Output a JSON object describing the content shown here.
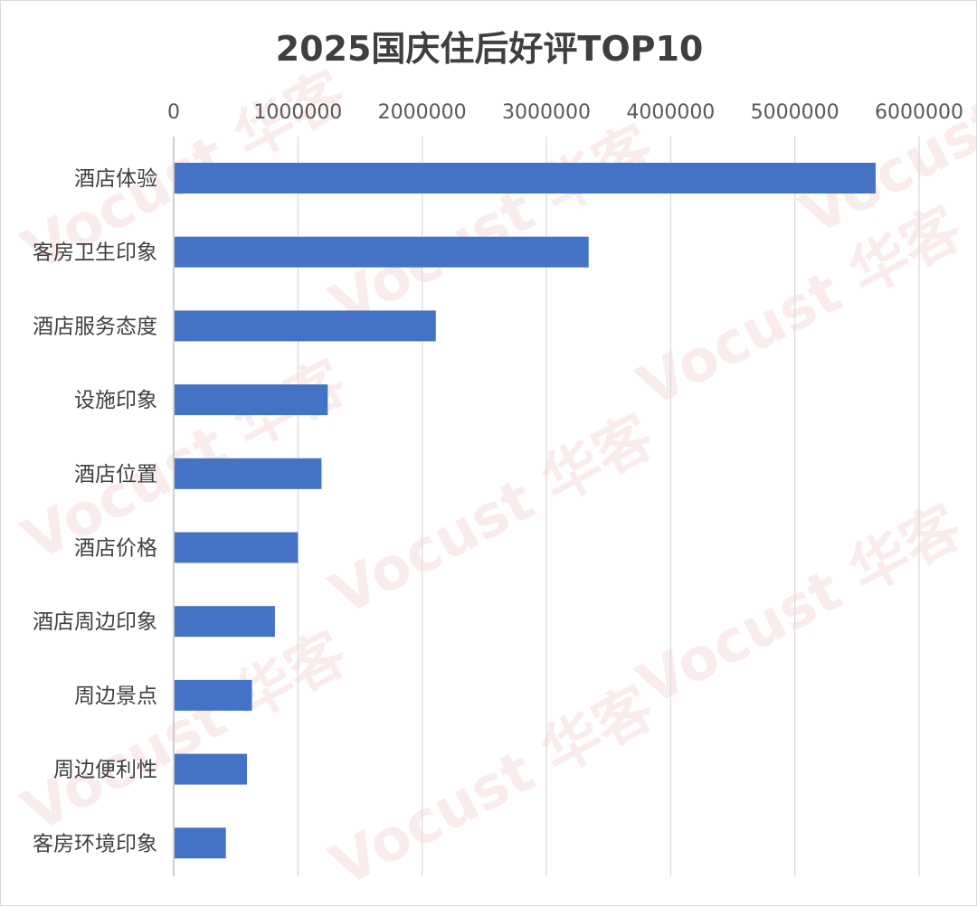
{
  "chart_data": {
    "type": "bar",
    "orientation": "horizontal",
    "title": "2025国庆住后好评TOP10",
    "categories": [
      "酒店体验",
      "客房卫生印象",
      "酒店服务态度",
      "设施印象",
      "酒店位置",
      "酒店价格",
      "酒店周边印象",
      "周边景点",
      "周边便利性",
      "客房环境印象"
    ],
    "values": [
      5650000,
      3340000,
      2110000,
      1240000,
      1190000,
      1000000,
      815000,
      630000,
      590000,
      420000
    ],
    "xlim": [
      0,
      6000000
    ],
    "xticks": [
      0,
      1000000,
      2000000,
      3000000,
      4000000,
      5000000,
      6000000
    ],
    "xtick_labels": [
      "0",
      "1000000",
      "2000000",
      "3000000",
      "4000000",
      "5000000",
      "6000000"
    ],
    "axis_position": "top",
    "grid": true,
    "bar_color": "#4472c4",
    "grid_color": "#d9d9d9"
  },
  "watermark": {
    "text": "Vocust 华客",
    "color": "#f2c9c9"
  }
}
